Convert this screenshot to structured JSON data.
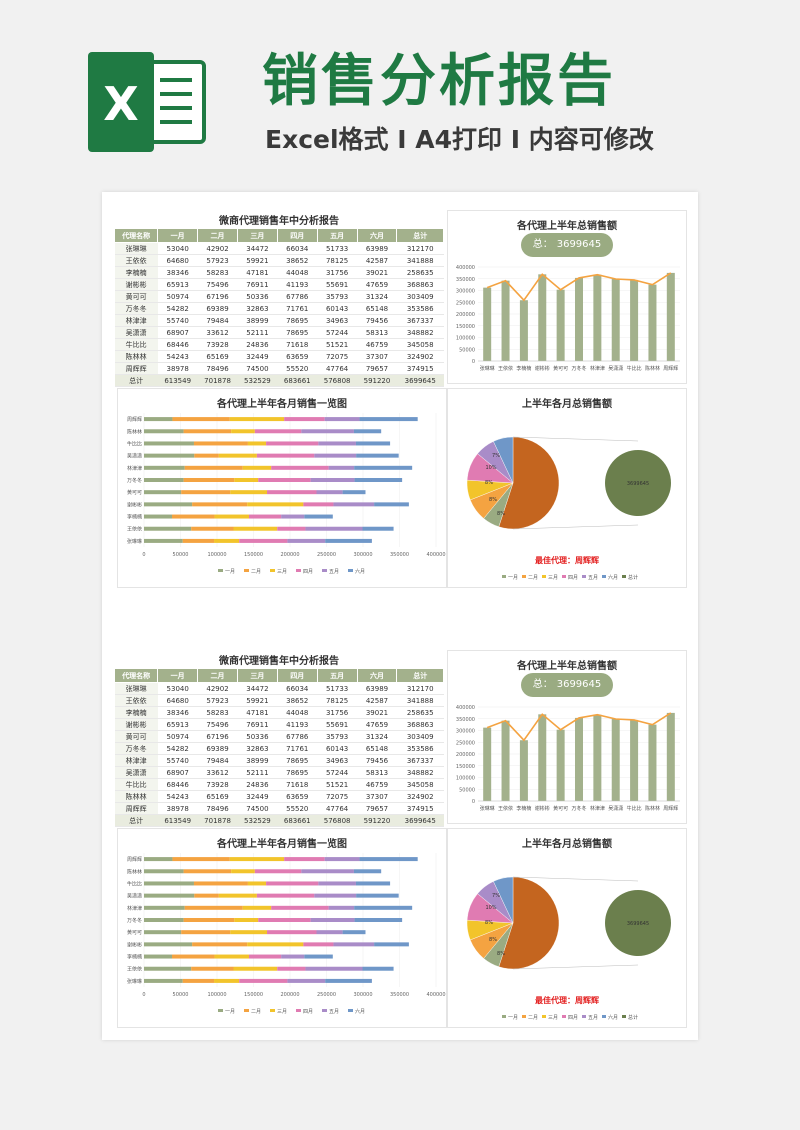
{
  "header": {
    "logo_letter": "X",
    "title": "销售分析报告",
    "subtitle": "Excel格式 I A4打印 I 内容可修改"
  },
  "colors": {
    "green_dark": "#1f7a43",
    "table_head": "#a3b18c",
    "bar": "#a3b18c",
    "line": "#f4a341",
    "pie_big": "#c4651f",
    "circle": "#6b7f4d",
    "series": [
      "#9aab82",
      "#f4a341",
      "#f2c42b",
      "#e07bb2",
      "#a98cc8",
      "#6f97c8"
    ]
  },
  "report": {
    "table_title": "微商代理销售年中分析报告",
    "columns": [
      "代理名称",
      "一月",
      "二月",
      "三月",
      "四月",
      "五月",
      "六月",
      "总计"
    ],
    "rows": [
      [
        "张琳琳",
        "53040",
        "42902",
        "34472",
        "66034",
        "51733",
        "63989",
        "312170"
      ],
      [
        "王依依",
        "64680",
        "57923",
        "59921",
        "38652",
        "78125",
        "42587",
        "341888"
      ],
      [
        "李楠楠",
        "38346",
        "58283",
        "47181",
        "44048",
        "31756",
        "39021",
        "258635"
      ],
      [
        "谢彬彬",
        "65913",
        "75496",
        "76911",
        "41193",
        "55691",
        "47659",
        "368863"
      ],
      [
        "黄可可",
        "50974",
        "67196",
        "50336",
        "67786",
        "35793",
        "31324",
        "303409"
      ],
      [
        "万冬冬",
        "54282",
        "69389",
        "32863",
        "71761",
        "60143",
        "65148",
        "353586"
      ],
      [
        "林津津",
        "55740",
        "79484",
        "38999",
        "78695",
        "34963",
        "79456",
        "367337"
      ],
      [
        "吴潇潇",
        "68907",
        "33612",
        "52111",
        "78695",
        "57244",
        "58313",
        "348882"
      ],
      [
        "牛比比",
        "68446",
        "73928",
        "24836",
        "71618",
        "51521",
        "46759",
        "345058"
      ],
      [
        "陈林林",
        "54243",
        "65169",
        "32449",
        "63659",
        "72075",
        "37307",
        "324902"
      ],
      [
        "周辉辉",
        "38978",
        "78496",
        "74500",
        "55520",
        "47764",
        "79657",
        "374915"
      ]
    ],
    "total_row": [
      "总计",
      "613549",
      "701878",
      "532529",
      "683661",
      "576808",
      "591220",
      "3699645"
    ],
    "summary_title": "各代理上半年总销售额",
    "summary_label": "总：",
    "summary_value": "3699645",
    "bar_title": "各代理上半年各月销售一览图",
    "pie_title": "上半年各月总销售额",
    "best_agent": "最佳代理：周辉辉",
    "pie_center_value": "3699645",
    "pie_pct_labels": [
      "7%",
      "10%",
      "8%",
      "8%",
      "8%"
    ],
    "pie_legend": [
      "一月",
      "二月",
      "三月",
      "四月",
      "五月",
      "六月",
      "总计"
    ]
  },
  "chart_data": [
    {
      "type": "bar",
      "title": "各代理上半年总销售额",
      "categories": [
        "张琳琳",
        "王依依",
        "李楠楠",
        "谢彬彬",
        "黄可可",
        "万冬冬",
        "林津津",
        "吴潇潇",
        "牛比比",
        "陈林林",
        "周辉辉"
      ],
      "values": [
        312170,
        341888,
        258635,
        368863,
        303409,
        353586,
        367337,
        348882,
        345058,
        324902,
        374915
      ],
      "ylim": [
        0,
        400000
      ],
      "yticks": [
        "0",
        "50000",
        "100000",
        "150000",
        "200000",
        "250000",
        "300000",
        "350000",
        "400000"
      ],
      "overlay_line": true
    },
    {
      "type": "bar",
      "orientation": "horizontal-stacked",
      "title": "各代理上半年各月销售一览图",
      "categories": [
        "张琳琳",
        "王依依",
        "李楠楠",
        "谢彬彬",
        "黄可可",
        "万冬冬",
        "林津津",
        "吴潇潇",
        "牛比比",
        "陈林林",
        "周辉辉"
      ],
      "series": [
        {
          "name": "一月",
          "values": [
            53040,
            64680,
            38346,
            65913,
            50974,
            54282,
            55740,
            68907,
            68446,
            54243,
            38978
          ]
        },
        {
          "name": "二月",
          "values": [
            42902,
            57923,
            58283,
            75496,
            67196,
            69389,
            79484,
            33612,
            73928,
            65169,
            78496
          ]
        },
        {
          "name": "三月",
          "values": [
            34472,
            59921,
            47181,
            76911,
            50336,
            32863,
            38999,
            52111,
            24836,
            32449,
            74500
          ]
        },
        {
          "name": "四月",
          "values": [
            66034,
            38652,
            44048,
            41193,
            67786,
            71761,
            78695,
            78695,
            71618,
            63659,
            55520
          ]
        },
        {
          "name": "五月",
          "values": [
            51733,
            78125,
            31756,
            55691,
            35793,
            60143,
            34963,
            57244,
            51521,
            72075,
            47764
          ]
        },
        {
          "name": "六月",
          "values": [
            63989,
            42587,
            39021,
            47659,
            31324,
            65148,
            79456,
            58313,
            46759,
            37307,
            79657
          ]
        }
      ],
      "xlim": [
        0,
        400000
      ],
      "xticks": [
        "0",
        "50000",
        "100000",
        "150000",
        "200000",
        "250000",
        "300000",
        "350000",
        "400000"
      ]
    },
    {
      "type": "pie",
      "title": "上半年各月总销售额",
      "labels": [
        "一月",
        "二月",
        "三月",
        "四月",
        "五月",
        "六月",
        "总计"
      ],
      "values": [
        613549,
        701878,
        532529,
        683661,
        576808,
        591220,
        3699645
      ]
    }
  ]
}
